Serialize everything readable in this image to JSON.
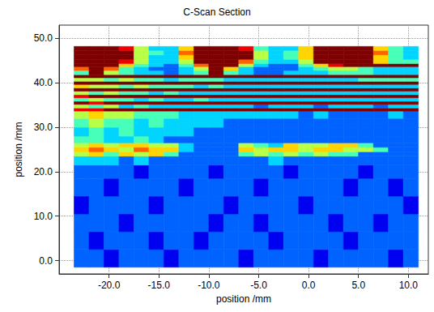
{
  "chart_data": {
    "type": "heatmap",
    "title": "C-Scan Section",
    "xlabel": "position /mm",
    "ylabel": "position /mm",
    "xlim": [
      -25,
      12
    ],
    "ylim": [
      -3,
      53
    ],
    "xticks": [
      {
        "value": -20,
        "label": "-20.0"
      },
      {
        "value": -15,
        "label": "-15.0"
      },
      {
        "value": -10,
        "label": "-10.0"
      },
      {
        "value": -5,
        "label": "-5.0"
      },
      {
        "value": 0,
        "label": "0.0"
      },
      {
        "value": 5,
        "label": "5.0"
      },
      {
        "value": 10,
        "label": "10.0"
      }
    ],
    "yticks": [
      {
        "value": 0,
        "label": "0.0"
      },
      {
        "value": 10,
        "label": "10.0"
      },
      {
        "value": 20,
        "label": "20.0"
      },
      {
        "value": 30,
        "label": "30.0"
      },
      {
        "value": 40,
        "label": "40.0"
      },
      {
        "value": 50,
        "label": "50.0"
      }
    ],
    "grid": true,
    "color_range": [
      0,
      9
    ],
    "x_edges": [
      -23.5,
      -22,
      -20.5,
      -19,
      -17.5,
      -16,
      -14.5,
      -13,
      -11.5,
      -10,
      -8.5,
      -7,
      -5.5,
      -4,
      -2.5,
      -1,
      0.5,
      2,
      3.5,
      5,
      6.5,
      8,
      9.5,
      11
    ],
    "y_edges": [
      -1.5,
      2.5,
      6.5,
      10.5,
      14.5,
      18.5,
      21.5,
      23.5,
      24.5,
      25.5,
      26.5,
      28,
      30,
      32,
      33.65,
      34.35,
      35.15,
      35.85,
      36.65,
      37.35,
      38.15,
      38.85,
      39.65,
      40.35,
      41.15,
      41.85,
      42.8,
      43.65,
      44.35,
      45.3,
      46.3,
      47.3,
      48.2
    ],
    "cells": [
      [
        2,
        2,
        1,
        2,
        2,
        2,
        1,
        2,
        2,
        2,
        2,
        1,
        2,
        2,
        2,
        2,
        1,
        2,
        2,
        2,
        2,
        1,
        2
      ],
      [
        2,
        1,
        2,
        2,
        2,
        1,
        2,
        2,
        1,
        2,
        2,
        2,
        2,
        1,
        2,
        2,
        2,
        2,
        1,
        2,
        2,
        2,
        2
      ],
      [
        2,
        2,
        2,
        1,
        2,
        2,
        2,
        2,
        2,
        1,
        2,
        2,
        1,
        2,
        2,
        2,
        2,
        1,
        2,
        2,
        1,
        2,
        2
      ],
      [
        1,
        2,
        2,
        2,
        2,
        1,
        2,
        2,
        2,
        2,
        1,
        2,
        2,
        2,
        2,
        1,
        2,
        2,
        2,
        2,
        2,
        2,
        1
      ],
      [
        2,
        2,
        1,
        2,
        2,
        2,
        2,
        1,
        2,
        2,
        2,
        2,
        1,
        2,
        2,
        2,
        2,
        2,
        1,
        2,
        2,
        1,
        2
      ],
      [
        2,
        2,
        2,
        2,
        1,
        2,
        2,
        2,
        2,
        1,
        2,
        2,
        2,
        2,
        1,
        2,
        2,
        2,
        2,
        1,
        2,
        2,
        2
      ],
      [
        3,
        3,
        3,
        2,
        3,
        2,
        2,
        2,
        2,
        2,
        2,
        2,
        2,
        3,
        2,
        2,
        2,
        2,
        2,
        2,
        2,
        2,
        2
      ],
      [
        5,
        6,
        4,
        6,
        5,
        6,
        4,
        2,
        2,
        2,
        2,
        4,
        5,
        4,
        5,
        4,
        5,
        4,
        4,
        2,
        2,
        2,
        2
      ],
      [
        6,
        7,
        6,
        5,
        7,
        6,
        6,
        3,
        2,
        2,
        2,
        6,
        5,
        6,
        6,
        5,
        6,
        6,
        5,
        5,
        4,
        2,
        2
      ],
      [
        5,
        6,
        5,
        6,
        6,
        5,
        5,
        3,
        2,
        2,
        2,
        5,
        4,
        3,
        6,
        5,
        5,
        6,
        6,
        4,
        2,
        2,
        2
      ],
      [
        4,
        4,
        3,
        3,
        4,
        3,
        2,
        2,
        2,
        2,
        2,
        2,
        2,
        2,
        2,
        2,
        2,
        2,
        2,
        2,
        2,
        2,
        2
      ],
      [
        3,
        4,
        3,
        4,
        3,
        3,
        3,
        3,
        2,
        2,
        2,
        2,
        2,
        2,
        2,
        2,
        2,
        2,
        2,
        2,
        2,
        2,
        2
      ],
      [
        4,
        5,
        4,
        4,
        3,
        4,
        3,
        3,
        3,
        3,
        2,
        2,
        2,
        2,
        2,
        2,
        2,
        2,
        2,
        2,
        2,
        2,
        2
      ],
      [
        5,
        6,
        5,
        5,
        4,
        4,
        4,
        3,
        3,
        3,
        3,
        3,
        3,
        3,
        3,
        2,
        3,
        2,
        2,
        2,
        2,
        3,
        2
      ],
      [
        8,
        8,
        9,
        9,
        9,
        9,
        9,
        9,
        9,
        9,
        9,
        9,
        9,
        9,
        9,
        9,
        9,
        9,
        9,
        9,
        9,
        9,
        9
      ],
      [
        5,
        4,
        5,
        3,
        4,
        3,
        3,
        3,
        3,
        3,
        3,
        3,
        2,
        3,
        3,
        3,
        2,
        3,
        3,
        3,
        2,
        3,
        3
      ],
      [
        9,
        8,
        9,
        9,
        9,
        9,
        9,
        9,
        9,
        9,
        9,
        9,
        9,
        9,
        9,
        9,
        9,
        9,
        9,
        9,
        9,
        9,
        9
      ],
      [
        4,
        5,
        4,
        4,
        3,
        4,
        3,
        3,
        4,
        3,
        3,
        3,
        3,
        3,
        3,
        3,
        3,
        3,
        3,
        3,
        3,
        3,
        3
      ],
      [
        8,
        9,
        9,
        9,
        9,
        9,
        9,
        9,
        9,
        9,
        9,
        9,
        9,
        9,
        9,
        9,
        9,
        9,
        9,
        9,
        9,
        9,
        9
      ],
      [
        5,
        4,
        5,
        4,
        4,
        3,
        4,
        3,
        3,
        3,
        3,
        3,
        3,
        3,
        3,
        3,
        3,
        3,
        3,
        3,
        3,
        3,
        3
      ],
      [
        9,
        9,
        9,
        9,
        9,
        9,
        9,
        9,
        9,
        9,
        9,
        9,
        9,
        9,
        9,
        9,
        9,
        9,
        9,
        9,
        9,
        9,
        9
      ],
      [
        6,
        5,
        5,
        4,
        5,
        4,
        4,
        4,
        3,
        4,
        3,
        3,
        3,
        3,
        3,
        3,
        3,
        3,
        3,
        3,
        3,
        3,
        3
      ],
      [
        9,
        9,
        9,
        9,
        9,
        9,
        9,
        9,
        9,
        9,
        9,
        9,
        9,
        9,
        9,
        9,
        9,
        9,
        9,
        9,
        9,
        9,
        9
      ],
      [
        5,
        5,
        4,
        5,
        4,
        4,
        3,
        4,
        4,
        4,
        3,
        3,
        3,
        3,
        3,
        3,
        3,
        3,
        3,
        4,
        4,
        4,
        4
      ],
      [
        9,
        9,
        9,
        9,
        9,
        9,
        9,
        9,
        9,
        9,
        9,
        9,
        9,
        9,
        9,
        9,
        9,
        9,
        9,
        9,
        9,
        9,
        9
      ],
      [
        4,
        9,
        5,
        4,
        3,
        3,
        2,
        3,
        4,
        9,
        4,
        3,
        2,
        2,
        3,
        3,
        3,
        4,
        4,
        4,
        3,
        3,
        3
      ],
      [
        7,
        9,
        7,
        4,
        3,
        2,
        2,
        3,
        5,
        9,
        6,
        3,
        2,
        2,
        2,
        3,
        4,
        5,
        5,
        4,
        3,
        3,
        3
      ],
      [
        9,
        9,
        9,
        6,
        4,
        3,
        2,
        4,
        7,
        9,
        9,
        5,
        3,
        2,
        2,
        4,
        6,
        8,
        9,
        9,
        9,
        9,
        9
      ],
      [
        9,
        9,
        9,
        8,
        5,
        3,
        3,
        5,
        9,
        9,
        9,
        7,
        4,
        3,
        3,
        5,
        9,
        9,
        9,
        9,
        6,
        4,
        4
      ],
      [
        9,
        9,
        9,
        9,
        5,
        3,
        3,
        6,
        9,
        9,
        9,
        9,
        5,
        3,
        4,
        6,
        9,
        9,
        9,
        9,
        6,
        4,
        3
      ],
      [
        9,
        9,
        9,
        9,
        5,
        4,
        3,
        7,
        9,
        9,
        9,
        9,
        5,
        3,
        4,
        6,
        9,
        9,
        9,
        9,
        7,
        4,
        3
      ],
      [
        9,
        9,
        9,
        8,
        5,
        3,
        3,
        6,
        9,
        9,
        9,
        8,
        4,
        3,
        3,
        6,
        9,
        9,
        9,
        9,
        6,
        4,
        3
      ]
    ]
  }
}
